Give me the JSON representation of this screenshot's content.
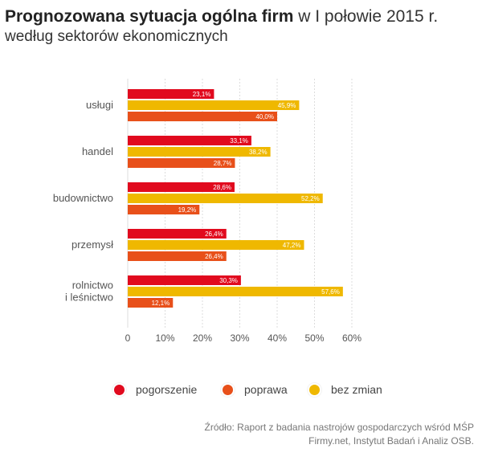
{
  "header": {
    "title_bold": "Prognozowana sytuacja ogólna firm",
    "title_rest": " w I połowie 2015 r.",
    "subtitle": "według sektorów ekonomicznych"
  },
  "colors": {
    "pogorszenie": "#e10a1e",
    "poprawa": "#e8501a",
    "bez_zmian": "#efb800",
    "grid": "#dcdcdc",
    "text": "#555555"
  },
  "chart_data": {
    "type": "bar",
    "orientation": "horizontal",
    "categories": [
      [
        "usługi"
      ],
      [
        "handel"
      ],
      [
        "budownictwo"
      ],
      [
        "przemysł"
      ],
      [
        "rolnictwo",
        "i leśnictwo"
      ]
    ],
    "series": [
      {
        "name": "pogorszenie",
        "color_key": "pogorszenie",
        "values": [
          23.1,
          33.1,
          28.6,
          26.4,
          30.3
        ],
        "labels": [
          "23,1%",
          "33,1%",
          "28,6%",
          "26,4%",
          "30,3%"
        ]
      },
      {
        "name": "bez zmian",
        "color_key": "bez_zmian",
        "values": [
          45.9,
          38.2,
          52.2,
          47.2,
          57.6
        ],
        "labels": [
          "45,9%",
          "38,2%",
          "52,2%",
          "47,2%",
          "57,6%"
        ]
      },
      {
        "name": "poprawa",
        "color_key": "poprawa",
        "values": [
          40.0,
          28.7,
          19.2,
          26.4,
          12.1
        ],
        "labels": [
          "40,0%",
          "28,7%",
          "19,2%",
          "26,4%",
          "12,1%"
        ]
      }
    ],
    "xlim": [
      0,
      60
    ],
    "xticks": [
      0,
      10,
      20,
      30,
      40,
      50,
      60
    ],
    "xtick_labels": [
      "0",
      "10%",
      "20%",
      "30%",
      "40%",
      "50%",
      "60%"
    ],
    "grid": true,
    "legend_position": "bottom"
  },
  "legend": [
    {
      "label": "pogorszenie",
      "color_key": "pogorszenie"
    },
    {
      "label": "poprawa",
      "color_key": "poprawa"
    },
    {
      "label": "bez zmian",
      "color_key": "bez_zmian"
    }
  ],
  "source": {
    "line1": "Źródło: Raport z badania nastrojów gospodarczych wśród MŚP",
    "line2": "Firmy.net, Instytut Badań i Analiz OSB."
  }
}
